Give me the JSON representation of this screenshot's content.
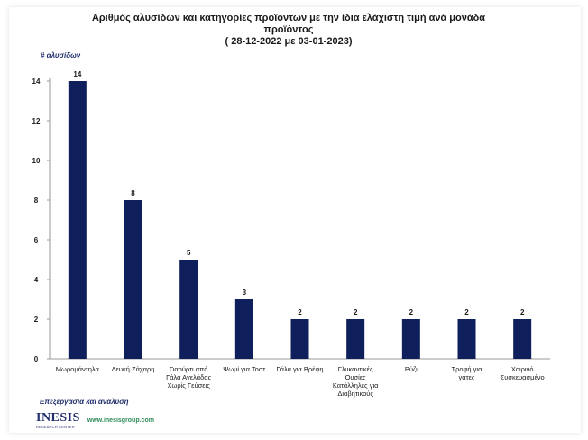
{
  "chart_data": {
    "type": "bar",
    "title_lines": [
      "Αριθμός αλυσίδων και κατηγορίες προϊόντων με την ίδια ελάχιστη τιμή ανά μονάδα",
      "προϊόντος",
      "( 28-12-2022 με 03-01-2023)"
    ],
    "ylabel": "# αλυσίδων",
    "xlabel": "",
    "ylim": [
      0,
      14
    ],
    "yticks": [
      0,
      2,
      4,
      6,
      8,
      10,
      12,
      14
    ],
    "categories": [
      [
        "Μωρομάντηλα"
      ],
      [
        "Λευκή Ζάχαρη"
      ],
      [
        "Γιαούρτι από",
        "Γάλα Αγελάδας",
        "Χωρίς Γεύσεις"
      ],
      [
        "Ψωμί για Τοστ"
      ],
      [
        "Γάλα για Βρέφη"
      ],
      [
        "Γλυκαντικές",
        "Ουσίες",
        "Κατάλληλες για",
        "Διαβητικούς"
      ],
      [
        "Ρύζι"
      ],
      [
        "Τροφή για",
        "γάτες"
      ],
      [
        "Χοιρινό",
        "Συσκευασμένο"
      ]
    ],
    "values": [
      14,
      8,
      5,
      3,
      2,
      2,
      2,
      2,
      2
    ],
    "bar_color": "#0e1f5b",
    "grid": false
  },
  "footer": {
    "note": "Επεξεργασία και ανάλυση",
    "logo": "INESIS",
    "logo_sub": "RESEARCH CENTER",
    "url": "www.inesisgroup.com"
  }
}
